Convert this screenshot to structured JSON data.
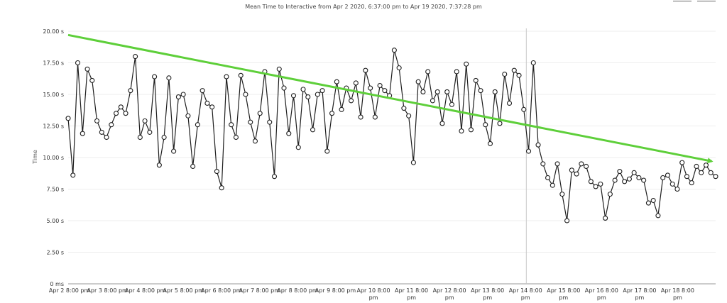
{
  "chart_data": {
    "type": "line",
    "title": "Mean Time to Interactive from Apr 2 2020, 6:37:00 pm to Apr 19 2020, 7:37:28 pm",
    "ylabel": "Time",
    "xlabel": "",
    "ylim": [
      0,
      20
    ],
    "y_ticks": [
      {
        "value": 0,
        "label": "0 ms"
      },
      {
        "value": 2.5,
        "label": "2.50 s"
      },
      {
        "value": 5,
        "label": "5.00 s"
      },
      {
        "value": 7.5,
        "label": "7.50 s"
      },
      {
        "value": 10,
        "label": "10.00 s"
      },
      {
        "value": 12.5,
        "label": "12.50 s"
      },
      {
        "value": 15,
        "label": "15.00 s"
      },
      {
        "value": 17.5,
        "label": "17.50 s"
      },
      {
        "value": 20,
        "label": "20.00 s"
      }
    ],
    "x_ticks": [
      {
        "day": 2,
        "lines": [
          "Apr 2 8:00 pm"
        ]
      },
      {
        "day": 3,
        "lines": [
          "Apr 3 8:00 pm"
        ]
      },
      {
        "day": 4,
        "lines": [
          "Apr 4 8:00 pm"
        ]
      },
      {
        "day": 5,
        "lines": [
          "Apr 5 8:00 pm"
        ]
      },
      {
        "day": 6,
        "lines": [
          "Apr 6 8:00 pm"
        ]
      },
      {
        "day": 7,
        "lines": [
          "Apr 7 8:00 pm"
        ]
      },
      {
        "day": 8,
        "lines": [
          "Apr 8 8:00 pm"
        ]
      },
      {
        "day": 9,
        "lines": [
          "Apr 9 8:00 pm"
        ]
      },
      {
        "day": 10,
        "lines": [
          "Apr 10 8:00",
          "pm"
        ]
      },
      {
        "day": 11,
        "lines": [
          "Apr 11 8:00",
          "pm"
        ]
      },
      {
        "day": 12,
        "lines": [
          "Apr 12 8:00",
          "pm"
        ]
      },
      {
        "day": 13,
        "lines": [
          "Apr 13 8:00",
          "pm"
        ]
      },
      {
        "day": 14,
        "lines": [
          "Apr 14 8:00",
          "pm"
        ]
      },
      {
        "day": 15,
        "lines": [
          "Apr 15 8:00",
          "pm"
        ]
      },
      {
        "day": 16,
        "lines": [
          "Apr 16 8:00",
          "pm"
        ]
      },
      {
        "day": 17,
        "lines": [
          "Apr 17 8:00",
          "pm"
        ]
      },
      {
        "day": 18,
        "lines": [
          "Apr 18 8:00",
          "pm"
        ]
      }
    ],
    "x_range_days": [
      1.97,
      19.0
    ],
    "series": [
      {
        "values": [
          13.1,
          8.6,
          17.5,
          11.9,
          17.0,
          16.1,
          12.9,
          12.0,
          11.6,
          12.6,
          13.5,
          14.0,
          13.5,
          15.3,
          18.0,
          11.6,
          12.9,
          12.0,
          16.4,
          9.4,
          11.6,
          16.3,
          10.5,
          14.8,
          15.0,
          13.3,
          9.3,
          12.6,
          15.3,
          14.3,
          14.0,
          8.9,
          7.6,
          16.4,
          12.6,
          11.6,
          16.5,
          15.0,
          12.8,
          11.3,
          13.5,
          16.8,
          12.8,
          8.5,
          17.0,
          15.5,
          11.9,
          14.9,
          10.8,
          15.4,
          14.8,
          12.2,
          15.0,
          15.3,
          10.5,
          13.5,
          16.0,
          13.8,
          15.5,
          14.5,
          15.9,
          13.2,
          16.9,
          15.5,
          13.2,
          15.7,
          15.3,
          14.9,
          18.5,
          17.1,
          13.9,
          13.3,
          9.6,
          16.0,
          15.2,
          16.8,
          14.5,
          15.2,
          12.7,
          15.2,
          14.2,
          16.8,
          12.1,
          17.4,
          12.2,
          16.1,
          15.3,
          12.6,
          11.1,
          15.2,
          12.7,
          16.6,
          14.3,
          16.9,
          16.5,
          13.8,
          10.5,
          17.5,
          11.0,
          9.5,
          8.4,
          7.8,
          9.5,
          7.1,
          5.0,
          9.0,
          8.7,
          9.5,
          9.3,
          8.1,
          7.7,
          7.9,
          5.2,
          7.1,
          8.2,
          8.9,
          8.1,
          8.3,
          8.8,
          8.4,
          8.2,
          6.4,
          6.6,
          5.4,
          8.4,
          8.6,
          7.9,
          7.5,
          9.6,
          8.5,
          8.0,
          9.3,
          8.8,
          9.4,
          8.8,
          8.5
        ]
      }
    ],
    "annotations": [
      {
        "type": "trend-arrow",
        "from": [
          1.97,
          19.7
        ],
        "to": [
          18.9,
          9.7
        ],
        "color": "#5ecf3a"
      },
      {
        "type": "vertical-marker",
        "x_day": 14.02,
        "color": "#c8c8c8"
      }
    ],
    "grid": true,
    "legend": "none"
  }
}
